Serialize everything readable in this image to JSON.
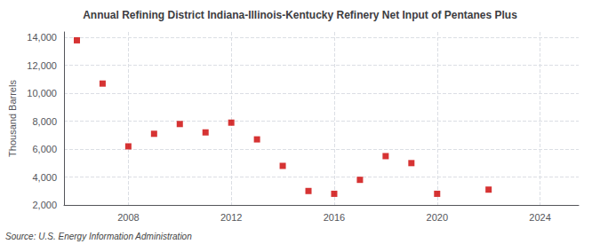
{
  "chart_data": {
    "type": "scatter",
    "title": "Annual Refining District Indiana-Illinois-Kentucky Refinery Net Input of Pentanes Plus",
    "ylabel": "Thousand Barrels",
    "source": "Source: U.S. Energy Information Administration",
    "x": [
      2006,
      2007,
      2008,
      2009,
      2010,
      2011,
      2012,
      2013,
      2014,
      2015,
      2016,
      2017,
      2018,
      2019,
      2020,
      2022
    ],
    "values": [
      13800,
      10700,
      6200,
      7100,
      7800,
      7200,
      7900,
      6700,
      4800,
      3000,
      2800,
      3800,
      5500,
      5000,
      2800,
      3100
    ],
    "color": "#cc0000",
    "marker": "square",
    "xlim": [
      2005.5,
      2025.5
    ],
    "xticks": [
      2008,
      2012,
      2016,
      2020,
      2024
    ],
    "ylim": [
      2000,
      14400
    ],
    "yticks": [
      {
        "value": 2000,
        "label": "2,000"
      },
      {
        "value": 4000,
        "label": "4,000"
      },
      {
        "value": 6000,
        "label": "6,000"
      },
      {
        "value": 8000,
        "label": "8,000"
      },
      {
        "value": 10000,
        "label": "10,000"
      },
      {
        "value": 12000,
        "label": "12,000"
      },
      {
        "value": 14000,
        "label": "14,000"
      }
    ],
    "grid": true
  }
}
